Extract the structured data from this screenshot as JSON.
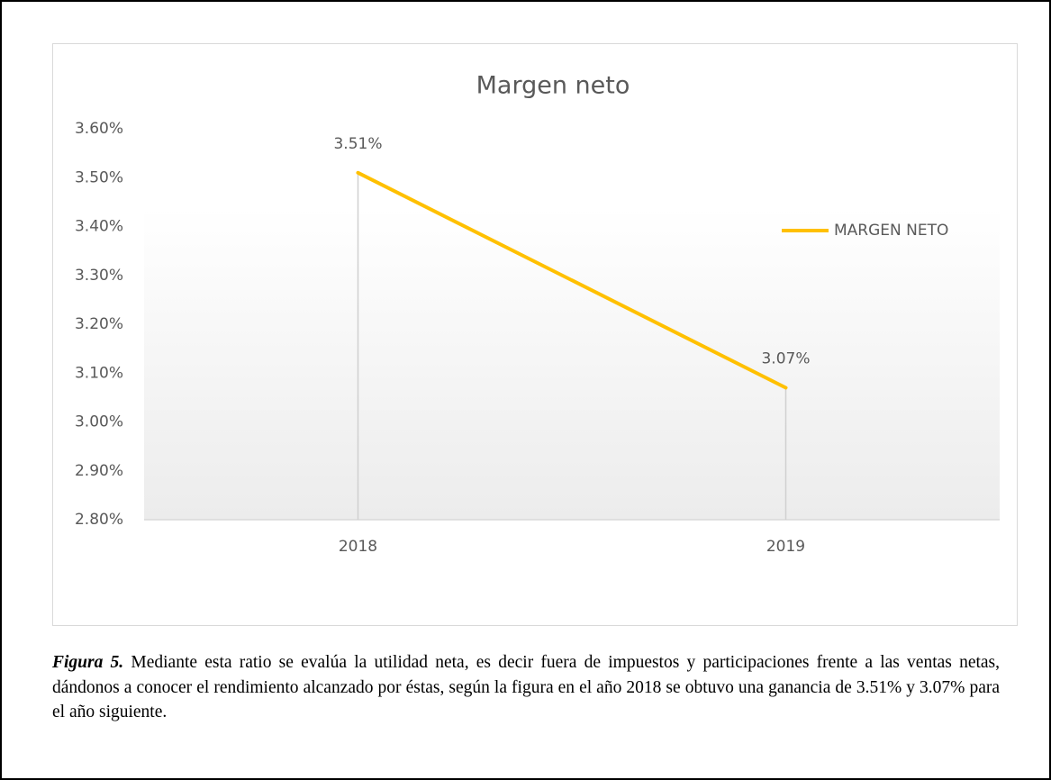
{
  "chart_data": {
    "type": "line",
    "title": "Margen neto",
    "categories": [
      "2018",
      "2019"
    ],
    "series": [
      {
        "name": "MARGEN NETO",
        "color": "#FFC000",
        "values": [
          3.51,
          3.07
        ],
        "value_labels": [
          "3.51%",
          "3.07%"
        ]
      }
    ],
    "ylim": [
      2.8,
      3.6
    ],
    "yticks": [
      {
        "value": 2.8,
        "label": "2.80%"
      },
      {
        "value": 2.9,
        "label": "2.90%"
      },
      {
        "value": 3.0,
        "label": "3.00%"
      },
      {
        "value": 3.1,
        "label": "3.10%"
      },
      {
        "value": 3.2,
        "label": "3.20%"
      },
      {
        "value": 3.3,
        "label": "3.30%"
      },
      {
        "value": 3.4,
        "label": "3.40%"
      },
      {
        "value": 3.5,
        "label": "3.50%"
      },
      {
        "value": 3.6,
        "label": "3.60%"
      }
    ],
    "drop_lines": true,
    "legend": "right",
    "grid": false
  },
  "caption": {
    "label": "Figura 5.",
    "text": "Mediante esta ratio se evalúa la utilidad neta, es decir fuera de impuestos y participaciones frente a las ventas netas, dándonos a conocer el rendimiento alcanzado por éstas, según la figura en el año 2018 se obtuvo una ganancia de 3.51% y 3.07% para el año siguiente."
  }
}
